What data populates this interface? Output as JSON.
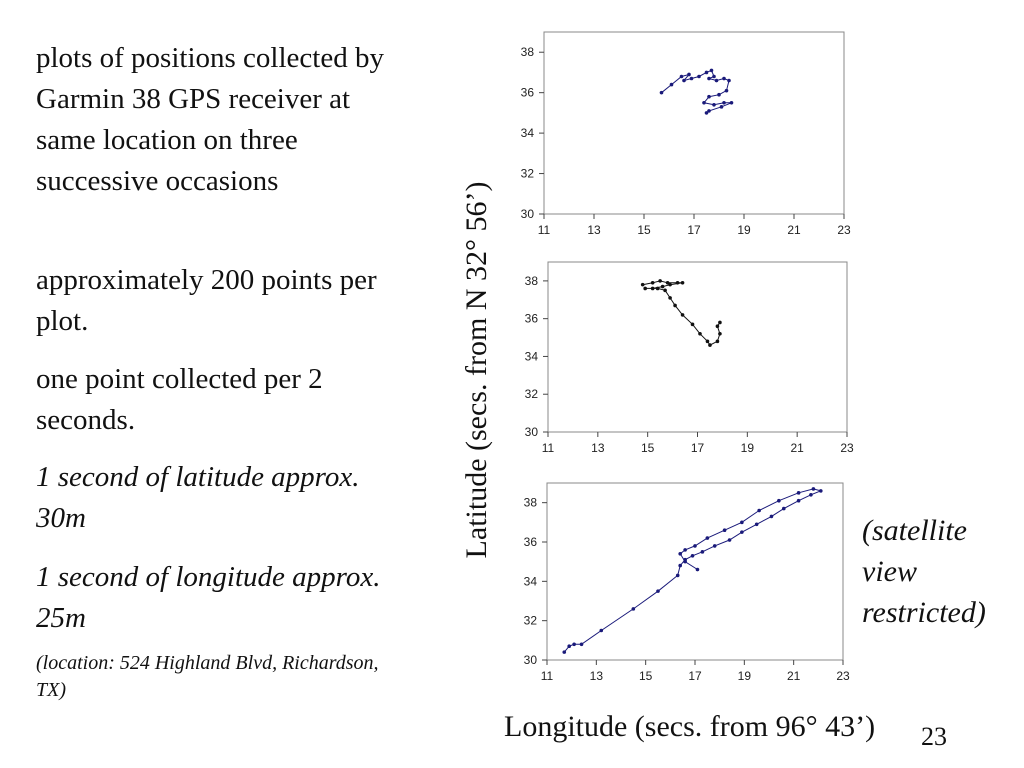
{
  "text": {
    "bullet1": "plots of  positions collected by  Garmin 38 GPS receiver at same location on three successive occasions",
    "bullet2": "approximately 200 points per plot.",
    "bullet3": "one point collected per 2 seconds.",
    "bullet4": "1 second of latitude approx. 30m",
    "bullet5": "1 second of longitude approx. 25m",
    "location": "(location: 524 Highland Blvd, Richardson, TX)",
    "note": "(satellite view restricted)",
    "page_number": "23"
  },
  "chart_data": [
    {
      "type": "scatter",
      "xlabel": "Longitude (secs. from 96° 43’)",
      "ylabel": "Latitude (secs. from N 32° 56’)",
      "xlim": [
        11,
        23
      ],
      "ylim": [
        30,
        39
      ],
      "xticks": [
        11,
        13,
        15,
        17,
        19,
        21,
        23
      ],
      "yticks": [
        30,
        32,
        34,
        36,
        38
      ],
      "grid": false,
      "color": "#1a1a7a",
      "points": [
        [
          15.7,
          36.0
        ],
        [
          16.1,
          36.4
        ],
        [
          16.5,
          36.8
        ],
        [
          16.8,
          36.9
        ],
        [
          16.6,
          36.6
        ],
        [
          16.9,
          36.7
        ],
        [
          17.2,
          36.8
        ],
        [
          17.5,
          37.0
        ],
        [
          17.7,
          37.1
        ],
        [
          17.8,
          36.8
        ],
        [
          17.6,
          36.7
        ],
        [
          17.9,
          36.6
        ],
        [
          18.2,
          36.7
        ],
        [
          18.4,
          36.6
        ],
        [
          18.3,
          36.1
        ],
        [
          18.0,
          35.9
        ],
        [
          17.6,
          35.8
        ],
        [
          17.4,
          35.5
        ],
        [
          17.8,
          35.4
        ],
        [
          18.2,
          35.5
        ],
        [
          18.5,
          35.5
        ],
        [
          18.1,
          35.3
        ],
        [
          17.6,
          35.1
        ],
        [
          17.5,
          35.0
        ]
      ]
    },
    {
      "type": "scatter",
      "xlabel": "Longitude (secs. from 96° 43’)",
      "ylabel": "Latitude (secs. from N 32° 56’)",
      "xlim": [
        11,
        23
      ],
      "ylim": [
        30,
        39
      ],
      "xticks": [
        11,
        13,
        15,
        17,
        19,
        21,
        23
      ],
      "yticks": [
        30,
        32,
        34,
        36,
        38
      ],
      "grid": false,
      "color": "#111111",
      "points": [
        [
          14.8,
          37.8
        ],
        [
          15.2,
          37.9
        ],
        [
          15.5,
          38.0
        ],
        [
          15.8,
          37.9
        ],
        [
          16.2,
          37.9
        ],
        [
          16.4,
          37.9
        ],
        [
          15.9,
          37.8
        ],
        [
          15.6,
          37.7
        ],
        [
          15.2,
          37.6
        ],
        [
          14.9,
          37.6
        ],
        [
          15.4,
          37.6
        ],
        [
          15.7,
          37.5
        ],
        [
          15.9,
          37.1
        ],
        [
          16.1,
          36.7
        ],
        [
          16.4,
          36.2
        ],
        [
          16.8,
          35.7
        ],
        [
          17.1,
          35.2
        ],
        [
          17.4,
          34.8
        ],
        [
          17.5,
          34.6
        ],
        [
          17.8,
          34.8
        ],
        [
          17.9,
          35.2
        ],
        [
          17.8,
          35.6
        ],
        [
          17.9,
          35.8
        ]
      ]
    },
    {
      "type": "scatter",
      "xlabel": "Longitude (secs. from 96° 43’)",
      "ylabel": "Latitude (secs. from N 32° 56’)",
      "xlim": [
        11,
        23
      ],
      "ylim": [
        30,
        39
      ],
      "xticks": [
        11,
        13,
        15,
        17,
        19,
        21,
        23
      ],
      "yticks": [
        30,
        32,
        34,
        36,
        38
      ],
      "grid": false,
      "color": "#1a1a7a",
      "points": [
        [
          11.7,
          30.4
        ],
        [
          11.9,
          30.7
        ],
        [
          12.1,
          30.8
        ],
        [
          12.4,
          30.8
        ],
        [
          13.2,
          31.5
        ],
        [
          14.5,
          32.6
        ],
        [
          15.5,
          33.5
        ],
        [
          16.3,
          34.3
        ],
        [
          16.4,
          34.8
        ],
        [
          16.6,
          35.1
        ],
        [
          16.9,
          35.3
        ],
        [
          17.3,
          35.5
        ],
        [
          17.8,
          35.8
        ],
        [
          18.4,
          36.1
        ],
        [
          18.9,
          36.5
        ],
        [
          19.5,
          36.9
        ],
        [
          20.1,
          37.3
        ],
        [
          20.6,
          37.7
        ],
        [
          21.2,
          38.1
        ],
        [
          21.7,
          38.4
        ],
        [
          22.1,
          38.6
        ],
        [
          21.8,
          38.7
        ],
        [
          21.2,
          38.5
        ],
        [
          20.4,
          38.1
        ],
        [
          19.6,
          37.6
        ],
        [
          18.9,
          37.0
        ],
        [
          18.2,
          36.6
        ],
        [
          17.5,
          36.2
        ],
        [
          17.0,
          35.8
        ],
        [
          16.6,
          35.6
        ],
        [
          16.4,
          35.4
        ],
        [
          16.6,
          35.0
        ],
        [
          17.1,
          34.6
        ]
      ]
    }
  ]
}
